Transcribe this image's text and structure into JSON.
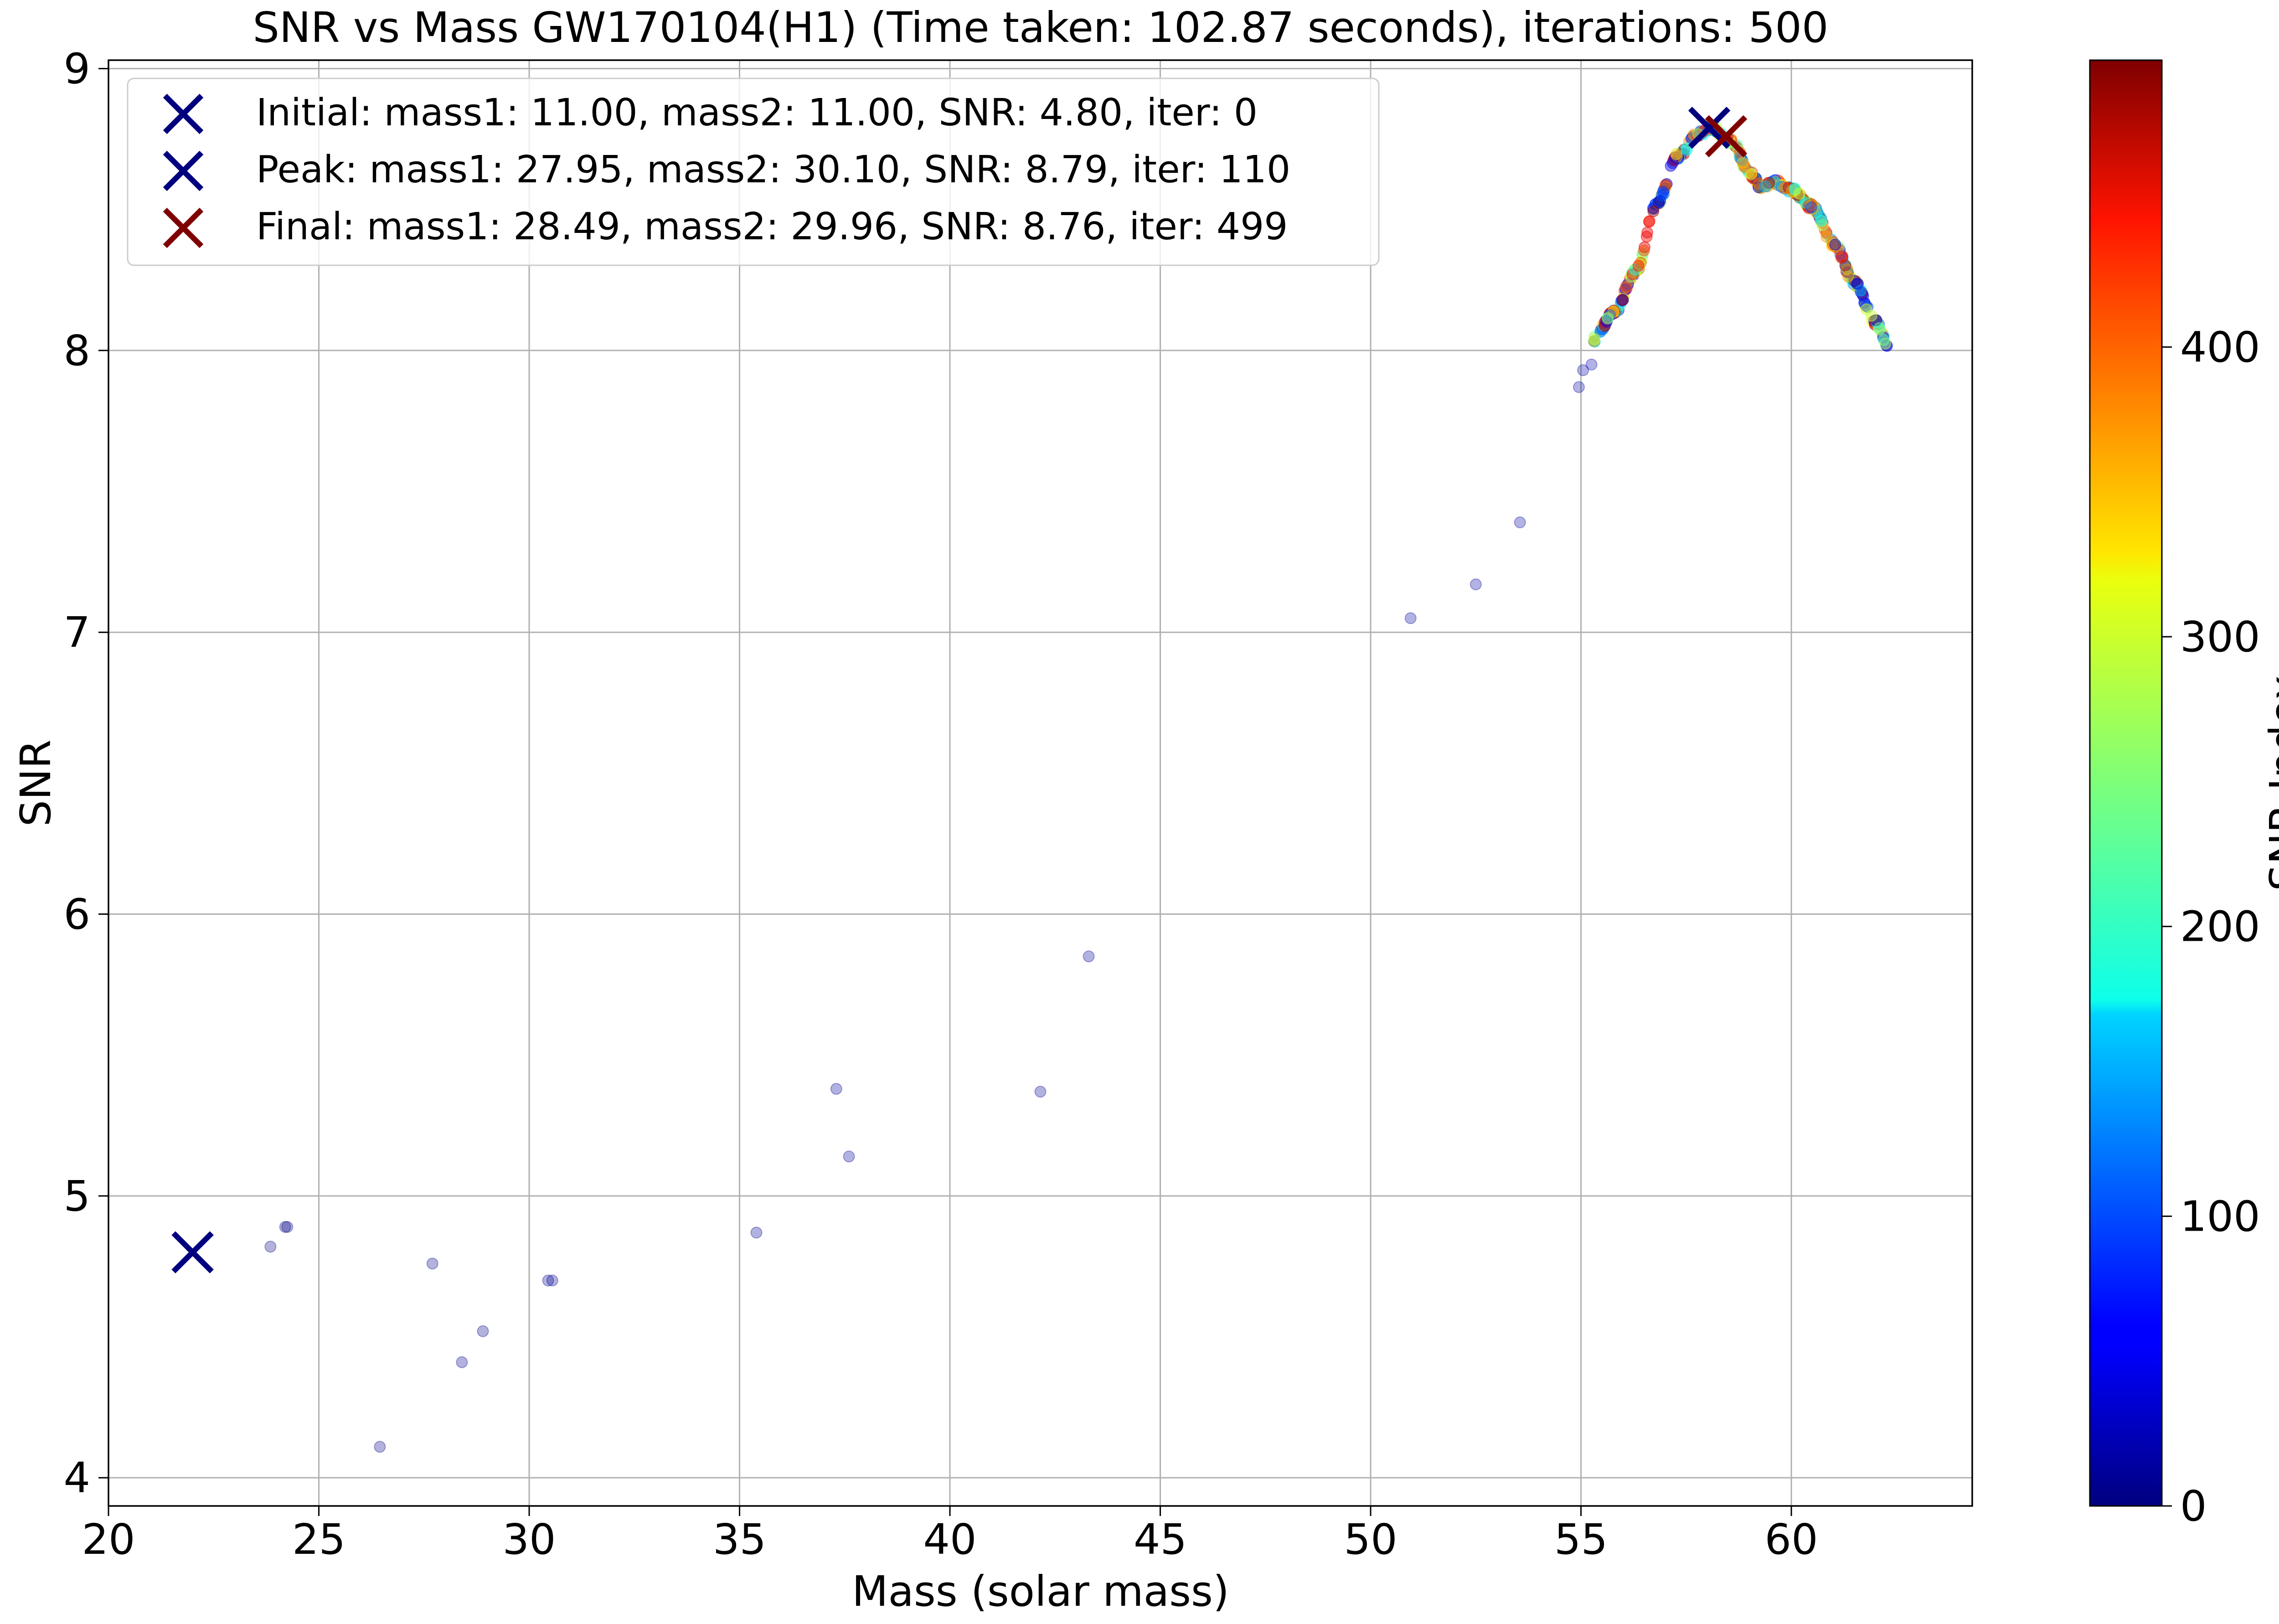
{
  "chart_data": {
    "type": "scatter",
    "title": "SNR vs Mass GW170104(H1) (Time taken: 102.87 seconds), iterations: 500",
    "xlabel": "Mass (solar mass)",
    "ylabel": "SNR",
    "xlim": [
      20,
      64.3
    ],
    "ylim": [
      3.9,
      9.03
    ],
    "x_ticks": [
      20,
      25,
      30,
      35,
      40,
      45,
      50,
      55,
      60
    ],
    "y_ticks": [
      4,
      5,
      6,
      7,
      8,
      9
    ],
    "grid": true,
    "legend_position": "top-left",
    "colorbar": {
      "label": "SNR Index",
      "colormap": "jet",
      "range": [
        0,
        499
      ],
      "ticks": [
        0,
        100,
        200,
        300,
        400
      ]
    },
    "markers": [
      {
        "label": "Initial: mass1: 11.00, mass2: 11.00, SNR: 4.80, iter: 0",
        "x": 22.0,
        "y": 4.8,
        "color": "#00007f",
        "iter": 0
      },
      {
        "label": "Peak: mass1: 27.95, mass2: 30.10, SNR: 8.79, iter: 110",
        "x": 58.05,
        "y": 8.79,
        "color": "#00007f",
        "iter": 110
      },
      {
        "label": "Final: mass1: 28.49, mass2: 29.96, SNR: 8.76, iter: 499",
        "x": 58.45,
        "y": 8.76,
        "color": "#7f0000",
        "iter": 499
      }
    ],
    "scatter_points": [
      {
        "x": 23.85,
        "y": 4.82,
        "idx": 2
      },
      {
        "x": 24.2,
        "y": 4.89,
        "idx": 3
      },
      {
        "x": 24.25,
        "y": 4.89,
        "idx": 4
      },
      {
        "x": 26.45,
        "y": 4.11,
        "idx": 5
      },
      {
        "x": 27.7,
        "y": 4.76,
        "idx": 6
      },
      {
        "x": 28.4,
        "y": 4.41,
        "idx": 7
      },
      {
        "x": 28.9,
        "y": 4.52,
        "idx": 8
      },
      {
        "x": 30.45,
        "y": 4.7,
        "idx": 9
      },
      {
        "x": 30.55,
        "y": 4.7,
        "idx": 10
      },
      {
        "x": 35.4,
        "y": 4.87,
        "idx": 11
      },
      {
        "x": 37.3,
        "y": 5.38,
        "idx": 12
      },
      {
        "x": 37.6,
        "y": 5.14,
        "idx": 13
      },
      {
        "x": 42.15,
        "y": 5.37,
        "idx": 14
      },
      {
        "x": 43.3,
        "y": 5.85,
        "idx": 15
      },
      {
        "x": 50.95,
        "y": 7.05,
        "idx": 16
      },
      {
        "x": 52.5,
        "y": 7.17,
        "idx": 17
      },
      {
        "x": 53.55,
        "y": 7.39,
        "idx": 18
      },
      {
        "x": 54.95,
        "y": 7.87,
        "idx": 19
      },
      {
        "x": 55.05,
        "y": 7.93,
        "idx": 20
      },
      {
        "x": 55.25,
        "y": 7.95,
        "idx": 21
      }
    ],
    "curve_knots": [
      {
        "x": 55.3,
        "y": 8.04
      },
      {
        "x": 55.8,
        "y": 8.14
      },
      {
        "x": 56.3,
        "y": 8.28
      },
      {
        "x": 56.8,
        "y": 8.52
      },
      {
        "x": 57.3,
        "y": 8.69
      },
      {
        "x": 57.8,
        "y": 8.77
      },
      {
        "x": 58.1,
        "y": 8.79
      },
      {
        "x": 58.6,
        "y": 8.74
      },
      {
        "x": 59.0,
        "y": 8.63
      },
      {
        "x": 59.3,
        "y": 8.58
      },
      {
        "x": 59.6,
        "y": 8.6
      },
      {
        "x": 60.0,
        "y": 8.57
      },
      {
        "x": 60.5,
        "y": 8.51
      },
      {
        "x": 61.0,
        "y": 8.38
      },
      {
        "x": 61.5,
        "y": 8.24
      },
      {
        "x": 62.0,
        "y": 8.1
      },
      {
        "x": 62.3,
        "y": 8.02
      }
    ],
    "curve_point_count": 390
  }
}
